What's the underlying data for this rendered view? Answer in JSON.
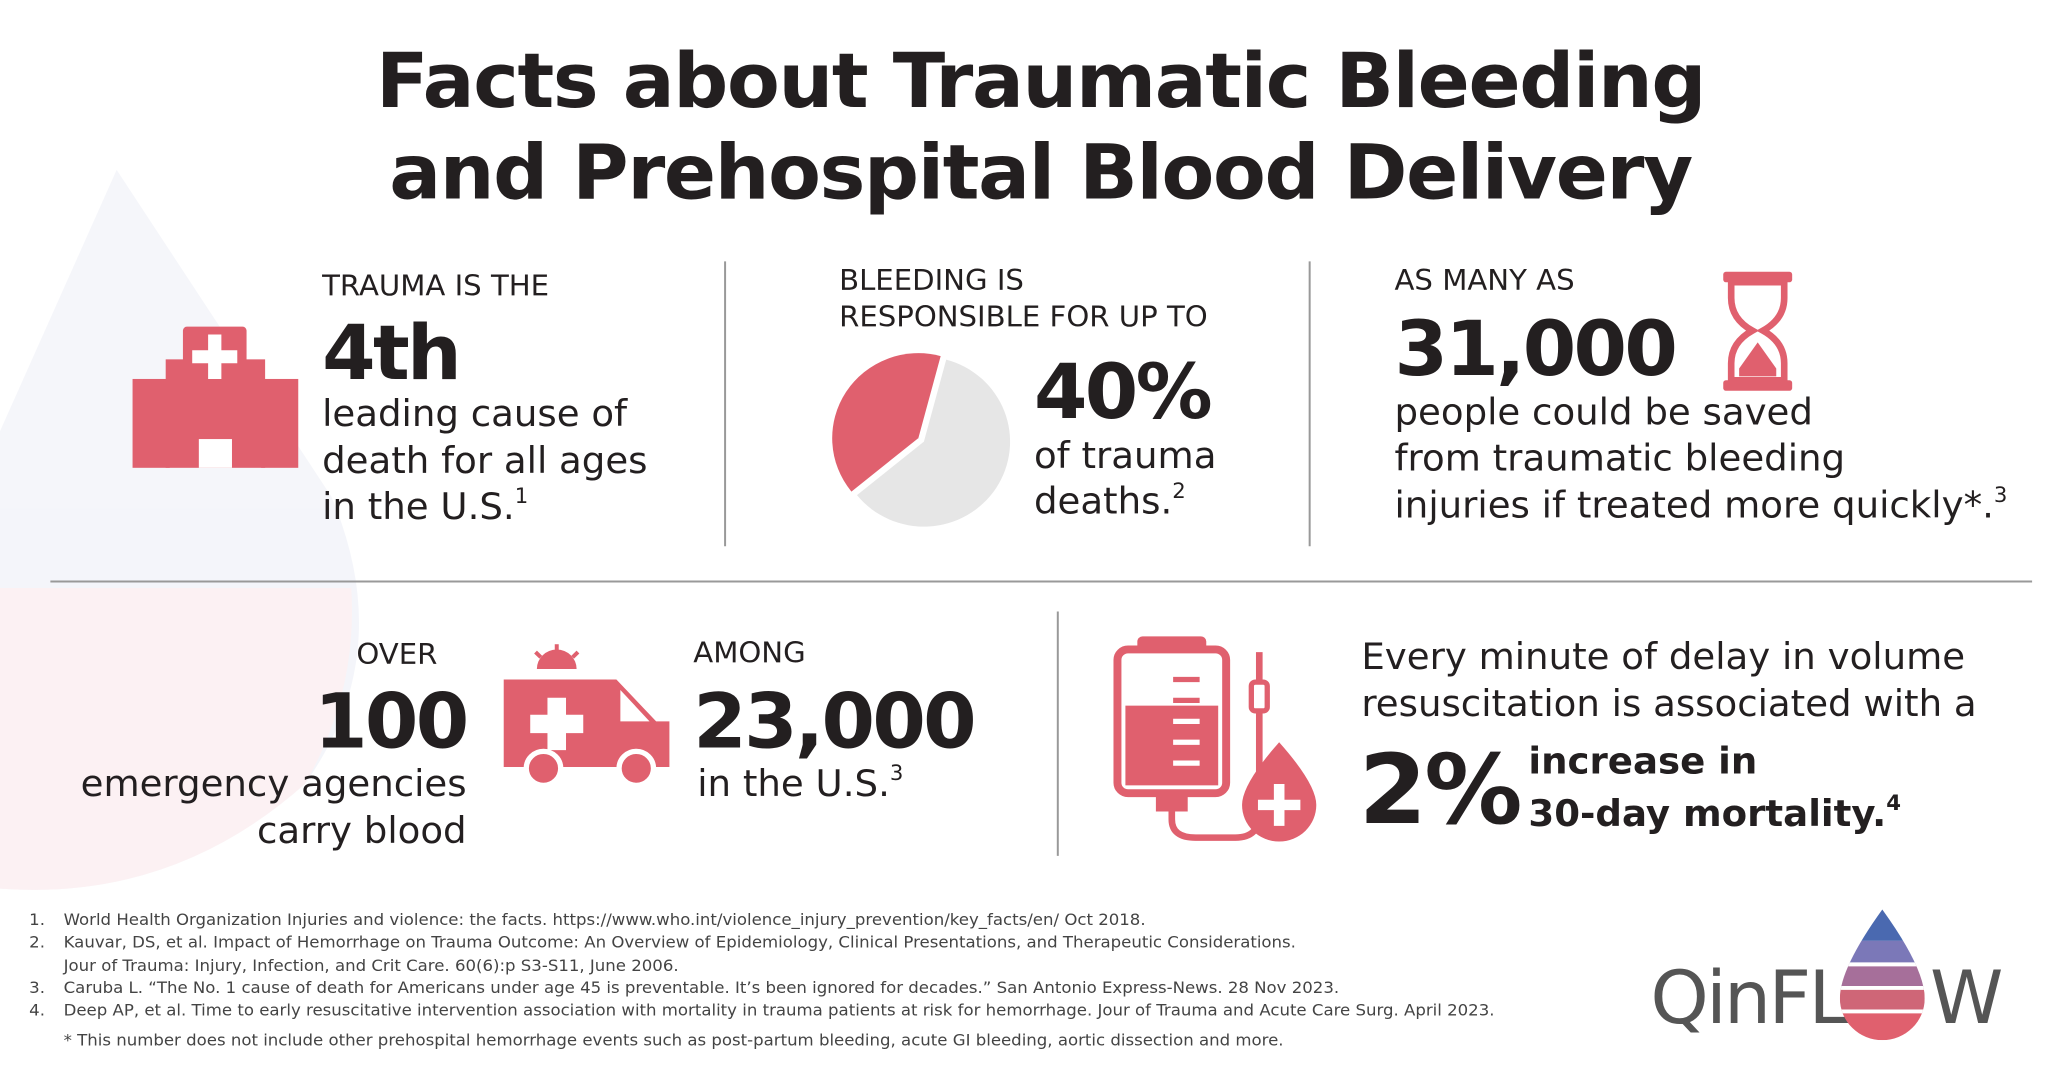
{
  "header": {
    "title": [
      "Facts about Traumatic Bleeding",
      "and Prehospital Blood Delivery"
    ]
  },
  "facts": [
    {
      "lead": [
        "TRAUMA IS THE"
      ],
      "figure": "4th",
      "body": [
        "leading cause of",
        "death for all ages",
        "in the U.S."
      ],
      "ref": "1"
    },
    {
      "lead": [
        "BLEEDING IS",
        "RESPONSIBLE FOR UP TO"
      ],
      "figure": {
        "value": 40,
        "label": "40%"
      },
      "body": [
        "of trauma",
        "deaths."
      ],
      "ref": "2"
    },
    {
      "lead": [
        "AS MANY AS"
      ],
      "figure": "31,000",
      "body": [
        "people could be saved",
        "from traumatic bleeding",
        "injuries if treated more quickly*."
      ],
      "ref": "3"
    },
    {
      "lead": [
        "OVER"
      ],
      "figure": "100",
      "body": [
        "emergency agencies",
        "carry blood"
      ]
    },
    {
      "lead": [
        "AMONG"
      ],
      "figure": "23,000",
      "body": [
        "in the U.S."
      ],
      "ref": "3"
    },
    {
      "lead": [
        "Every minute of delay in volume",
        "resuscitation is associated with a"
      ],
      "figure": "2%",
      "body": [
        "increase in",
        "30-day mortality."
      ],
      "ref": "4"
    }
  ],
  "footnotes": [
    {
      "num": "1.",
      "text": [
        "World Health Organization Injuries and violence: the facts. https://www.who.int/violence_injury_prevention/key_facts/en/ Oct 2018."
      ]
    },
    {
      "num": "2.",
      "text": [
        "Kauvar, DS, et al. Impact of Hemorrhage on Trauma Outcome: An Overview of Epidemiology, Clinical Presentations, and Therapeutic Considerations.",
        "Jour of Trauma: Injury, Infection, and Crit Care. 60(6):p S3-S11, June 2006."
      ]
    },
    {
      "num": "3.",
      "text": [
        "Caruba L. “The No. 1 cause of death for Americans under age 45 is preventable. It’s been ignored for decades.” San Antonio Express-News. 28 Nov 2023."
      ]
    },
    {
      "num": "4.",
      "text": [
        "Deep AP, et al. Time to early resuscitative intervention association with mortality in trauma patients at risk for hemorrhage. Jour of Trauma and Acute Care Surg. April 2023."
      ]
    }
  ],
  "note": "* This number does not include other prehospital hemorrhage events such as post-partum bleeding, acute GI bleeding, aortic dissection and more.",
  "logo": [
    "QinFL",
    "W"
  ]
}
